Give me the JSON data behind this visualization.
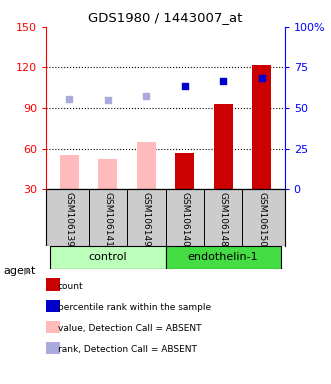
{
  "title": "GDS1980 / 1443007_at",
  "samples": [
    "GSM106139",
    "GSM106141",
    "GSM106149",
    "GSM106140",
    "GSM106148",
    "GSM106150"
  ],
  "ylim_left": [
    30,
    150
  ],
  "ylim_right": [
    0,
    100
  ],
  "yticks_left": [
    30,
    60,
    90,
    120,
    150
  ],
  "yticks_right": [
    0,
    25,
    50,
    75,
    100
  ],
  "yticklabels_right": [
    "0",
    "25",
    "50",
    "75",
    "100%"
  ],
  "bar_values": [
    55,
    52,
    65,
    57,
    93,
    122
  ],
  "bar_colors": [
    "#ffbbbb",
    "#ffbbbb",
    "#ffbbbb",
    "#cc0000",
    "#cc0000",
    "#cc0000"
  ],
  "dot_values": [
    97,
    96,
    99,
    106,
    110,
    112
  ],
  "dot_colors": [
    "#aaaadd",
    "#aaaadd",
    "#aaaadd",
    "#0000cc",
    "#0000cc",
    "#0000cc"
  ],
  "legend_items": [
    {
      "color": "#cc0000",
      "label": "count"
    },
    {
      "color": "#0000cc",
      "label": "percentile rank within the sample"
    },
    {
      "color": "#ffbbbb",
      "label": "value, Detection Call = ABSENT"
    },
    {
      "color": "#aaaadd",
      "label": "rank, Detection Call = ABSENT"
    }
  ],
  "grid_yticks": [
    60,
    90,
    120
  ],
  "left_axis_color": "red",
  "right_axis_color": "blue",
  "bar_width": 0.5,
  "ctrl_color": "#bbffbb",
  "endo_color": "#44dd44",
  "agent_label": "agent",
  "fig_bg_color": "white",
  "label_bg_color": "#cccccc"
}
